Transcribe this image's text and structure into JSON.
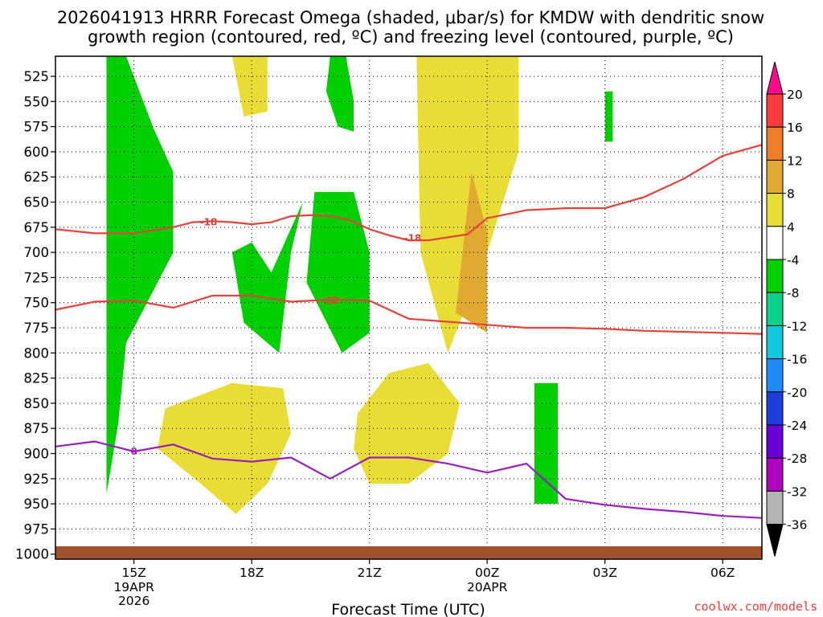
{
  "chart_data": {
    "type": "time-height cross-section (filled contour)",
    "title_line1": "2026041913 HRRR Forecast Omega (shaded, μbar/s) for KMDW with dendritic snow",
    "title_line2": "growth region (contoured, red, ºC) and freezing level (contoured, purple, ºC)",
    "xlabel": "Forecast Time (UTC)",
    "credit": "coolwx.com/models",
    "ylabel_ticks": [
      "525",
      "550",
      "575",
      "600",
      "625",
      "650",
      "675",
      "700",
      "725",
      "750",
      "775",
      "800",
      "825",
      "850",
      "875",
      "900",
      "925",
      "950",
      "975",
      "1000"
    ],
    "y_units": "hPa",
    "ylim": [
      505,
      1005
    ],
    "xlim_hours": [
      13,
      31
    ],
    "xticks": [
      {
        "label": "15Z",
        "sub1": "19APR",
        "sub2": "2026",
        "hour": 15
      },
      {
        "label": "18Z",
        "sub1": "",
        "sub2": "",
        "hour": 18
      },
      {
        "label": "21Z",
        "sub1": "",
        "sub2": "",
        "hour": 21
      },
      {
        "label": "00Z",
        "sub1": "20APR",
        "sub2": "",
        "hour": 24
      },
      {
        "label": "03Z",
        "sub1": "",
        "sub2": "",
        "hour": 27
      },
      {
        "label": "06Z",
        "sub1": "",
        "sub2": "",
        "hour": 30
      }
    ],
    "colorbar": {
      "labels": [
        "20",
        "16",
        "12",
        "8",
        "4",
        "-4",
        "-8",
        "-12",
        "-16",
        "-20",
        "-24",
        "-28",
        "-32",
        "-36"
      ],
      "colors": {
        "gt20": "#ff0a8c",
        "16_20": "#ff3a3a",
        "12_16": "#f17d29",
        "8_12": "#e0a931",
        "4_8": "#e8dc35",
        "-4_4": "#ffffff",
        "-8_-4": "#00cf00",
        "-12_-8": "#0dd18a",
        "-16_-12": "#14c8dc",
        "-20_-16": "#1e8cff",
        "-24_-20": "#1d3ddc",
        "-28_-24": "#6a00d6",
        "-32_-28": "#b000c0",
        "-36_-32": "#b4b4b4",
        "lt-36": "#000000"
      }
    },
    "isotherm_labels": [
      "-18",
      "-18",
      "-12",
      "0"
    ],
    "contours": {
      "minus18_line": {
        "color": "#e8403a",
        "hour": [
          13,
          14,
          15,
          16,
          16.5,
          17,
          17.5,
          18,
          18.5,
          19,
          19.5,
          20,
          20.5,
          21,
          21.5,
          22,
          22.5,
          23,
          23.5,
          24,
          25,
          26,
          27,
          28,
          29,
          30,
          31
        ],
        "hpa": [
          677,
          681,
          681,
          675,
          670,
          669,
          670,
          672,
          670,
          664,
          663,
          664,
          668,
          677,
          683,
          688,
          688,
          685,
          682,
          666,
          658,
          656,
          656,
          645,
          627,
          604,
          593
        ]
      },
      "minus12_line": {
        "color": "#e8403a",
        "hour": [
          13,
          14,
          15,
          16,
          17,
          18,
          19,
          20,
          21,
          22,
          23,
          24,
          25,
          26,
          27,
          28,
          29,
          30,
          31
        ],
        "hpa": [
          757,
          749,
          748,
          755,
          743,
          743,
          749,
          747,
          748,
          766,
          769,
          772,
          775,
          775,
          776,
          778,
          779,
          780,
          781
        ]
      },
      "freezing_line": {
        "color": "#9a1fc0",
        "hour": [
          13,
          14,
          15,
          16,
          17,
          18,
          19,
          20,
          21,
          22,
          23,
          24,
          25,
          26,
          27,
          28,
          29,
          30,
          31
        ],
        "hpa": [
          893,
          888,
          898,
          891,
          905,
          908,
          904,
          925,
          904,
          904,
          910,
          919,
          910,
          945,
          951,
          955,
          958,
          962,
          964
        ]
      }
    },
    "omega_regions": [
      {
        "band": "-8_-4",
        "hour": [
          14.3,
          14.8,
          15.5,
          16.0,
          16.0,
          15.2,
          14.8,
          14.6,
          14.3
        ],
        "hpa": [
          505,
          505,
          577,
          620,
          700,
          760,
          790,
          870,
          940
        ]
      },
      {
        "band": "4_8",
        "hour": [
          17.5,
          18.4,
          18.4,
          17.8
        ],
        "hpa": [
          505,
          505,
          560,
          565
        ]
      },
      {
        "band": "-8_-4",
        "hour": [
          18.5,
          19.3,
          19.0,
          18.7,
          17.8,
          17.5,
          18.0
        ],
        "hpa": [
          720,
          650,
          700,
          800,
          770,
          700,
          690
        ]
      },
      {
        "band": "-8_-4",
        "hour": [
          19.6,
          20.6,
          21.0,
          21.0,
          20.3,
          19.4
        ],
        "hpa": [
          640,
          640,
          700,
          780,
          800,
          730
        ]
      },
      {
        "band": "-8_-4",
        "hour": [
          20.0,
          20.4,
          20.6,
          20.6,
          20.2,
          19.9
        ],
        "hpa": [
          505,
          505,
          550,
          580,
          575,
          540
        ]
      },
      {
        "band": "4_8",
        "hour": [
          15.8,
          17.5,
          18.8,
          19.0,
          18.4,
          17.6,
          16.7,
          15.6
        ],
        "hpa": [
          855,
          830,
          835,
          880,
          930,
          960,
          930,
          895
        ]
      },
      {
        "band": "4_8",
        "hour": [
          20.7,
          21.5,
          22.5,
          23.3,
          23.0,
          22.0,
          21.0,
          20.6
        ],
        "hpa": [
          860,
          820,
          810,
          850,
          900,
          930,
          930,
          895
        ]
      },
      {
        "band": "4_8",
        "hour": [
          22.2,
          23.1,
          24.8,
          24.8,
          24.0,
          23.0,
          22.3
        ],
        "hpa": [
          505,
          505,
          505,
          600,
          700,
          800,
          700
        ]
      },
      {
        "band": "8_12",
        "hour": [
          23.6,
          24.0,
          24.0,
          23.2
        ],
        "hpa": [
          620,
          680,
          780,
          760
        ]
      },
      {
        "band": "-8_-4",
        "hour": [
          25.2,
          25.8,
          25.8,
          25.2
        ],
        "hpa": [
          830,
          830,
          950,
          950
        ]
      },
      {
        "band": "-8_-4",
        "hour": [
          27.0,
          27.2,
          27.2,
          27.0
        ],
        "hpa": [
          540,
          540,
          590,
          590
        ]
      }
    ]
  }
}
